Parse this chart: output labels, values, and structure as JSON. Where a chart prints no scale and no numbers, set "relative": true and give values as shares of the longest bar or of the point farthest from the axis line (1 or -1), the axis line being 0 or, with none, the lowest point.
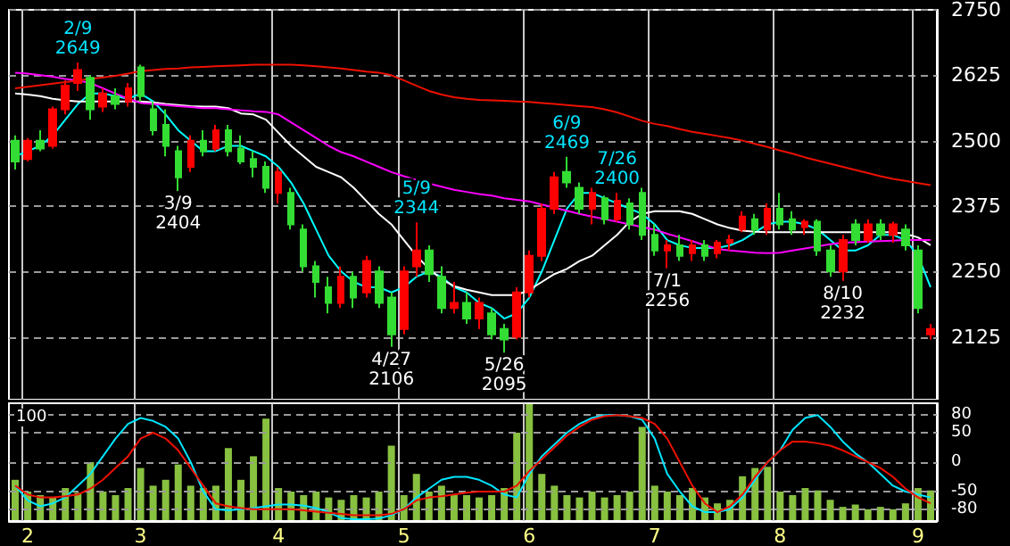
{
  "chart_data": [
    {
      "type": "candlestick",
      "categories": [
        null,
        "2",
        null,
        null,
        null,
        null,
        null,
        null,
        null,
        null,
        "3",
        null,
        null,
        null,
        null,
        null,
        null,
        null,
        null,
        null,
        null,
        "4",
        null,
        null,
        null,
        null,
        null,
        null,
        null,
        null,
        null,
        "5",
        null,
        null,
        null,
        null,
        null,
        null,
        null,
        null,
        null,
        "6",
        null,
        null,
        null,
        null,
        null,
        null,
        null,
        null,
        null,
        "7",
        null,
        null,
        null,
        null,
        null,
        null,
        null,
        null,
        null,
        "8",
        null,
        null,
        null,
        null,
        null,
        null,
        null,
        null,
        null,
        null,
        "9",
        null
      ],
      "ohlc": [
        [
          2500,
          2510,
          2445,
          2460
        ],
        [
          2465,
          2505,
          2460,
          2500
        ],
        [
          2500,
          2520,
          2480,
          2485
        ],
        [
          2490,
          2565,
          2485,
          2560
        ],
        [
          2560,
          2615,
          2550,
          2605
        ],
        [
          2610,
          2649,
          2595,
          2635
        ],
        [
          2620,
          2625,
          2540,
          2560
        ],
        [
          2565,
          2600,
          2555,
          2590
        ],
        [
          2585,
          2600,
          2560,
          2570
        ],
        [
          2575,
          2610,
          2565,
          2600
        ],
        [
          2640,
          2645,
          2575,
          2585
        ],
        [
          2560,
          2575,
          2510,
          2520
        ],
        [
          2530,
          2560,
          2470,
          2490
        ],
        [
          2480,
          2490,
          2404,
          2430
        ],
        [
          2450,
          2510,
          2440,
          2500
        ],
        [
          2500,
          2520,
          2470,
          2480
        ],
        [
          2485,
          2530,
          2480,
          2520
        ],
        [
          2520,
          2530,
          2470,
          2480
        ],
        [
          2485,
          2510,
          2455,
          2460
        ],
        [
          2465,
          2480,
          2430,
          2450
        ],
        [
          2450,
          2460,
          2400,
          2410
        ],
        [
          2400,
          2450,
          2380,
          2440
        ],
        [
          2400,
          2410,
          2330,
          2340
        ],
        [
          2330,
          2340,
          2250,
          2260
        ],
        [
          2260,
          2270,
          2200,
          2230
        ],
        [
          2220,
          2240,
          2170,
          2190
        ],
        [
          2190,
          2260,
          2180,
          2240
        ],
        [
          2240,
          2250,
          2180,
          2200
        ],
        [
          2210,
          2280,
          2200,
          2270
        ],
        [
          2250,
          2260,
          2180,
          2190
        ],
        [
          2200,
          2210,
          2106,
          2130
        ],
        [
          2140,
          2260,
          2130,
          2250
        ],
        [
          2260,
          2344,
          2240,
          2290
        ],
        [
          2290,
          2300,
          2230,
          2245
        ],
        [
          2240,
          2260,
          2170,
          2180
        ],
        [
          2180,
          2230,
          2170,
          2190
        ],
        [
          2190,
          2210,
          2150,
          2160
        ],
        [
          2160,
          2200,
          2140,
          2190
        ],
        [
          2170,
          2180,
          2120,
          2130
        ],
        [
          2140,
          2150,
          2095,
          2120
        ],
        [
          2125,
          2220,
          2120,
          2210
        ],
        [
          2210,
          2290,
          2200,
          2280
        ],
        [
          2280,
          2380,
          2270,
          2370
        ],
        [
          2370,
          2440,
          2360,
          2430
        ],
        [
          2440,
          2469,
          2410,
          2420
        ],
        [
          2410,
          2420,
          2360,
          2370
        ],
        [
          2370,
          2410,
          2340,
          2400
        ],
        [
          2390,
          2395,
          2340,
          2350
        ],
        [
          2350,
          2400,
          2345,
          2385
        ],
        [
          2380,
          2390,
          2330,
          2340
        ],
        [
          2400,
          2410,
          2310,
          2320
        ],
        [
          2320,
          2340,
          2280,
          2290
        ],
        [
          2290,
          2310,
          2256,
          2300
        ],
        [
          2300,
          2320,
          2270,
          2280
        ],
        [
          2285,
          2310,
          2270,
          2300
        ],
        [
          2300,
          2310,
          2270,
          2280
        ],
        [
          2285,
          2310,
          2275,
          2305
        ],
        [
          2305,
          2320,
          2290,
          2310
        ],
        [
          2330,
          2365,
          2325,
          2355
        ],
        [
          2350,
          2360,
          2320,
          2330
        ],
        [
          2330,
          2380,
          2320,
          2370
        ],
        [
          2370,
          2400,
          2330,
          2340
        ],
        [
          2350,
          2365,
          2320,
          2330
        ],
        [
          2335,
          2350,
          2320,
          2345
        ],
        [
          2345,
          2350,
          2280,
          2290
        ],
        [
          2290,
          2300,
          2240,
          2250
        ],
        [
          2250,
          2320,
          2232,
          2310
        ],
        [
          2340,
          2350,
          2300,
          2310
        ],
        [
          2310,
          2350,
          2305,
          2340
        ],
        [
          2340,
          2350,
          2310,
          2320
        ],
        [
          2320,
          2345,
          2305,
          2340
        ],
        [
          2330,
          2340,
          2290,
          2300
        ],
        [
          2290,
          2300,
          2170,
          2180
        ],
        [
          2130,
          2150,
          2120,
          2140
        ]
      ],
      "colors": [
        "#33dd33",
        "#ff0000",
        "#33dd33",
        "#ff0000",
        "#ff0000",
        "#ff0000",
        "#33dd33",
        "#ff0000",
        "#33dd33",
        "#ff0000",
        "#33dd33",
        "#33dd33",
        "#33dd33",
        "#33dd33",
        "#ff0000",
        "#33dd33",
        "#ff0000",
        "#33dd33",
        "#33dd33",
        "#33dd33",
        "#33dd33",
        "#ff0000",
        "#33dd33",
        "#33dd33",
        "#33dd33",
        "#33dd33",
        "#ff0000",
        "#33dd33",
        "#ff0000",
        "#33dd33",
        "#33dd33",
        "#ff0000",
        "#ff0000",
        "#33dd33",
        "#33dd33",
        "#ff0000",
        "#33dd33",
        "#ff0000",
        "#33dd33",
        "#33dd33",
        "#ff0000",
        "#ff0000",
        "#ff0000",
        "#ff0000",
        "#33dd33",
        "#33dd33",
        "#ff0000",
        "#33dd33",
        "#ff0000",
        "#33dd33",
        "#33dd33",
        "#33dd33",
        "#ff0000",
        "#33dd33",
        "#ff0000",
        "#33dd33",
        "#ff0000",
        "#ff0000",
        "#ff0000",
        "#33dd33",
        "#ff0000",
        "#33dd33",
        "#33dd33",
        "#ff0000",
        "#33dd33",
        "#33dd33",
        "#ff0000",
        "#33dd33",
        "#ff0000",
        "#33dd33",
        "#ff0000",
        "#33dd33",
        "#33dd33",
        "#ff0000"
      ],
      "series": [
        {
          "type": "line",
          "color": "#00ffff",
          "values": [
            2470,
            2480,
            2490,
            2510,
            2540,
            2570,
            2590,
            2590,
            2585,
            2580,
            2590,
            2575,
            2550,
            2520,
            2500,
            2480,
            2480,
            2490,
            2490,
            2480,
            2470,
            2450,
            2420,
            2380,
            2330,
            2280,
            2250,
            2230,
            2220,
            2220,
            2210,
            2220,
            2240,
            2250,
            2240,
            2220,
            2210,
            2190,
            2180,
            2160,
            2170,
            2200,
            2250,
            2310,
            2370,
            2400,
            2400,
            2390,
            2380,
            2370,
            2360,
            2340,
            2310,
            2300,
            2295,
            2295,
            2295,
            2300,
            2310,
            2325,
            2340,
            2345,
            2345,
            2340,
            2330,
            2310,
            2290,
            2290,
            2300,
            2320,
            2320,
            2310,
            2280,
            2220
          ]
        },
        {
          "type": "line",
          "color": "#ffffff",
          "values": [
            2590,
            2588,
            2585,
            2580,
            2577,
            2575,
            2575,
            2575,
            2575,
            2575,
            2575,
            2573,
            2570,
            2568,
            2566,
            2565,
            2565,
            2562,
            2552,
            2550,
            2540,
            2515,
            2490,
            2470,
            2450,
            2440,
            2430,
            2410,
            2385,
            2360,
            2340,
            2310,
            2280,
            2255,
            2235,
            2222,
            2215,
            2210,
            2205,
            2205,
            2205,
            2215,
            2230,
            2245,
            2255,
            2270,
            2280,
            2300,
            2320,
            2345,
            2360,
            2365,
            2365,
            2365,
            2360,
            2350,
            2340,
            2333,
            2328,
            2326,
            2325,
            2325,
            2325,
            2325,
            2325,
            2325,
            2325,
            2325,
            2325,
            2325,
            2325,
            2322,
            2315,
            2300
          ]
        },
        {
          "type": "line",
          "color": "#ff00ff",
          "values": [
            2630,
            2628,
            2625,
            2622,
            2618,
            2615,
            2610,
            2600,
            2590,
            2580,
            2572,
            2570,
            2568,
            2566,
            2564,
            2562,
            2562,
            2560,
            2558,
            2556,
            2555,
            2550,
            2535,
            2520,
            2505,
            2490,
            2478,
            2470,
            2460,
            2450,
            2440,
            2432,
            2425,
            2418,
            2412,
            2406,
            2402,
            2398,
            2395,
            2390,
            2387,
            2384,
            2378,
            2372,
            2366,
            2360,
            2355,
            2350,
            2345,
            2340,
            2335,
            2330,
            2322,
            2315,
            2308,
            2300,
            2293,
            2290,
            2288,
            2286,
            2285,
            2286,
            2290,
            2294,
            2298,
            2302,
            2305,
            2306,
            2307,
            2308,
            2309,
            2310,
            2310,
            2310
          ]
        },
        {
          "type": "line",
          "color": "#ee1100",
          "values": [
            2600,
            2603,
            2606,
            2609,
            2612,
            2615,
            2618,
            2621,
            2624,
            2628,
            2633,
            2635,
            2637,
            2638,
            2640,
            2641,
            2642,
            2643,
            2644,
            2645,
            2645,
            2645,
            2645,
            2644,
            2642,
            2640,
            2638,
            2635,
            2632,
            2630,
            2625,
            2615,
            2605,
            2595,
            2588,
            2583,
            2580,
            2578,
            2577,
            2576,
            2575,
            2574,
            2572,
            2570,
            2568,
            2566,
            2564,
            2560,
            2554,
            2546,
            2538,
            2532,
            2528,
            2522,
            2517,
            2513,
            2509,
            2505,
            2500,
            2494,
            2488,
            2481,
            2475,
            2468,
            2462,
            2456,
            2450,
            2444,
            2438,
            2432,
            2427,
            2423,
            2419,
            2415
          ]
        }
      ],
      "ylim": [
        2005,
        2750
      ],
      "yticks": [
        2125,
        2250,
        2375,
        2500,
        2625,
        2750
      ],
      "annotations": [
        {
          "text": "2/9\n2649",
          "y": 2649
        },
        {
          "text": "3/9\n2404",
          "y": 2404
        },
        {
          "text": "4/27\n2106",
          "y": 2106
        },
        {
          "text": "5/9\n2344",
          "y": 2344
        },
        {
          "text": "5/26\n2095",
          "y": 2095
        },
        {
          "text": "6/9\n2469",
          "y": 2469
        },
        {
          "text": "7/1\n2256",
          "y": 2256
        },
        {
          "text": "7/26\n2400",
          "y": 2400
        },
        {
          "text": "8/10\n2232",
          "y": 2232
        }
      ],
      "grid": true,
      "tick_labels": "y"
    },
    {
      "type": "bar",
      "relative": true,
      "categories": [
        null,
        "2",
        null,
        null,
        null,
        null,
        null,
        null,
        null,
        null,
        "3",
        null,
        null,
        null,
        null,
        null,
        null,
        null,
        null,
        null,
        null,
        "4",
        null,
        null,
        null,
        null,
        null,
        null,
        null,
        null,
        null,
        "5",
        null,
        null,
        null,
        null,
        null,
        null,
        null,
        null,
        null,
        "6",
        null,
        null,
        null,
        null,
        null,
        null,
        null,
        null,
        null,
        "7",
        null,
        null,
        null,
        null,
        null,
        null,
        null,
        null,
        null,
        "8",
        null,
        null,
        null,
        null,
        null,
        null,
        null,
        null,
        null,
        null,
        "9",
        null
      ],
      "color": "#88c040",
      "values": [
        0.35,
        0.25,
        0.22,
        0.2,
        0.28,
        0.24,
        0.5,
        0.25,
        0.22,
        0.28,
        0.45,
        0.3,
        0.35,
        0.48,
        0.3,
        0.28,
        0.3,
        0.62,
        0.35,
        0.55,
        0.87,
        0.28,
        0.25,
        0.22,
        0.25,
        0.2,
        0.18,
        0.22,
        0.2,
        0.25,
        0.64,
        0.22,
        0.4,
        0.25,
        0.3,
        0.22,
        0.22,
        0.2,
        0.22,
        0.28,
        0.75,
        1,
        0.4,
        0.3,
        0.22,
        0.2,
        0.25,
        0.2,
        0.22,
        0.25,
        0.8,
        0.3,
        0.25,
        0.22,
        0.28,
        0.2,
        0.15,
        0.18,
        0.38,
        0.45,
        0.46,
        0.25,
        0.22,
        0.28,
        0.26,
        0.18,
        0.12,
        0.14,
        0.1,
        0.12,
        0.1,
        0.15,
        0.28,
        0.26
      ],
      "annotations": [
        "100"
      ],
      "grid": false,
      "tick_labels": false
    },
    {
      "type": "line",
      "categories": [
        null,
        "2",
        null,
        null,
        null,
        null,
        null,
        null,
        null,
        null,
        "3",
        null,
        null,
        null,
        null,
        null,
        null,
        null,
        null,
        null,
        null,
        "4",
        null,
        null,
        null,
        null,
        null,
        null,
        null,
        null,
        null,
        "5",
        null,
        null,
        null,
        null,
        null,
        null,
        null,
        null,
        null,
        "6",
        null,
        null,
        null,
        null,
        null,
        null,
        null,
        null,
        null,
        "7",
        null,
        null,
        null,
        null,
        null,
        null,
        null,
        null,
        null,
        "8",
        null,
        null,
        null,
        null,
        null,
        null,
        null,
        null,
        null,
        null,
        "9",
        null
      ],
      "series": [
        {
          "type": "line",
          "color": "#00e5ff",
          "values": [
            -40,
            -65,
            -75,
            -70,
            -60,
            -40,
            -20,
            10,
            40,
            65,
            75,
            70,
            60,
            40,
            0,
            -50,
            -80,
            -82,
            -80,
            -78,
            -75,
            -72,
            -72,
            -74,
            -78,
            -85,
            -95,
            -97,
            -97,
            -96,
            -90,
            -80,
            -60,
            -45,
            -30,
            -25,
            -25,
            -30,
            -40,
            -55,
            -60,
            -20,
            10,
            30,
            50,
            65,
            75,
            80,
            80,
            78,
            72,
            40,
            -20,
            -50,
            -75,
            -85,
            -85,
            -80,
            -60,
            -30,
            0,
            20,
            55,
            75,
            80,
            60,
            35,
            15,
            0,
            -20,
            -40,
            -50,
            -55,
            -60
          ]
        },
        {
          "type": "line",
          "color": "#ee1100",
          "values": [
            -40,
            -55,
            -60,
            -60,
            -58,
            -55,
            -45,
            -30,
            -10,
            10,
            40,
            50,
            40,
            20,
            -10,
            -40,
            -70,
            -75,
            -78,
            -80,
            -80,
            -80,
            -80,
            -82,
            -84,
            -86,
            -88,
            -90,
            -90,
            -90,
            -88,
            -80,
            -65,
            -60,
            -58,
            -55,
            -52,
            -50,
            -50,
            -50,
            -40,
            -15,
            5,
            25,
            45,
            60,
            72,
            78,
            80,
            78,
            75,
            65,
            40,
            0,
            -40,
            -70,
            -85,
            -75,
            -55,
            -25,
            0,
            20,
            35,
            35,
            32,
            28,
            20,
            10,
            0,
            -10,
            -25,
            -45,
            -60,
            -70
          ]
        }
      ],
      "ylim": [
        -100,
        100
      ],
      "yticks": [
        -80,
        -50,
        0,
        50,
        80
      ],
      "grid": true
    }
  ]
}
